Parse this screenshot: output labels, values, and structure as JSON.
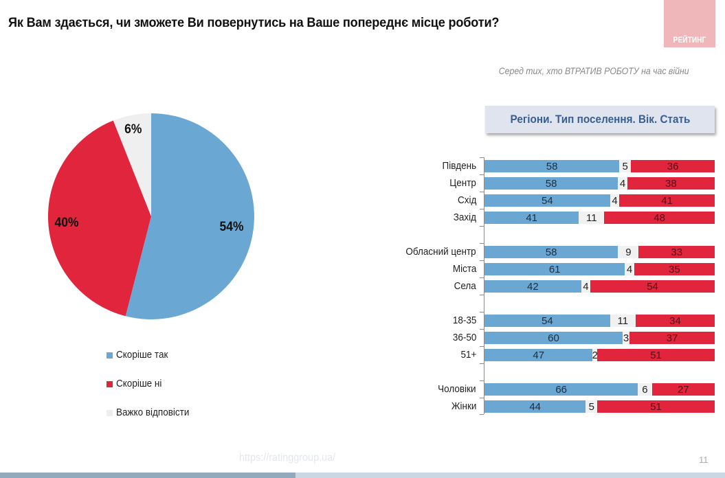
{
  "header": {
    "title": "Як Вам здається, чи зможете Ви повернутись на Ваше попереднє місце роботи?",
    "logo_text": "РЕЙТИНГ",
    "subtitle": "Серед тих, хто ВТРАТИВ РОБОТУ на час війни"
  },
  "section": {
    "title": "Регіони. Тип поселення. Вік. Стать"
  },
  "colors": {
    "yes": "#6aa8d3",
    "no": "#e0253d",
    "dont_know": "#f1f1f1",
    "logo": "#efb7b9",
    "section_title": "#3a5f8f"
  },
  "pie": {
    "labels": {
      "yes": "54%",
      "no": "40%",
      "dont_know": "6%"
    }
  },
  "legend": [
    {
      "label": "Скоріше так",
      "color": "#6aa8d3"
    },
    {
      "label": "Скоріше ні",
      "color": "#e0253d"
    },
    {
      "label": "Важко відповісти",
      "color": "#eeeeee"
    }
  ],
  "bars": {
    "rows": [
      {
        "label": "Південь",
        "yes": "58",
        "dk": "5",
        "no": "36"
      },
      {
        "label": "Центр",
        "yes": "58",
        "dk": "4",
        "no": "38"
      },
      {
        "label": "Схід",
        "yes": "54",
        "dk": "4",
        "no": "41"
      },
      {
        "label": "Захід",
        "yes": "41",
        "dk": "11",
        "no": "48"
      },
      {
        "label": "Обласний центр",
        "yes": "58",
        "dk": "9",
        "no": "33"
      },
      {
        "label": "Міста",
        "yes": "61",
        "dk": "4",
        "no": "35"
      },
      {
        "label": "Села",
        "yes": "42",
        "dk": "4",
        "no": "54"
      },
      {
        "label": "18-35",
        "yes": "54",
        "dk": "11",
        "no": "34"
      },
      {
        "label": "36-50",
        "yes": "60",
        "dk": "3",
        "no": "37"
      },
      {
        "label": "51+",
        "yes": "47",
        "dk": "2",
        "no": "51"
      },
      {
        "label": "Чоловіки",
        "yes": "66",
        "dk": "6",
        "no": "27"
      },
      {
        "label": "Жінки",
        "yes": "44",
        "dk": "5",
        "no": "51"
      }
    ]
  },
  "footer": {
    "url": "https://ratinggroup.ua/",
    "page": "11"
  },
  "chart_data": [
    {
      "type": "pie",
      "title": "Як Вам здається, чи зможете Ви повернутись на Ваше попереднє місце роботи?",
      "categories": [
        "Скоріше так",
        "Скоріше ні",
        "Важко відповісти"
      ],
      "values": [
        54,
        40,
        6
      ],
      "unit": "%",
      "legend_position": "bottom"
    },
    {
      "type": "bar",
      "orientation": "horizontal",
      "stacked": true,
      "title": "Регіони. Тип поселення. Вік. Стать",
      "subtitle": "Серед тих, хто ВТРАТИВ РОБОТУ на час війни",
      "categories": [
        "Південь",
        "Центр",
        "Схід",
        "Захід",
        "Обласний центр",
        "Міста",
        "Села",
        "18-35",
        "36-50",
        "51+",
        "Чоловіки",
        "Жінки"
      ],
      "groups": [
        {
          "name": "Регіони",
          "categories": [
            "Південь",
            "Центр",
            "Схід",
            "Захід"
          ]
        },
        {
          "name": "Тип поселення",
          "categories": [
            "Обласний центр",
            "Міста",
            "Села"
          ]
        },
        {
          "name": "Вік",
          "categories": [
            "18-35",
            "36-50",
            "51+"
          ]
        },
        {
          "name": "Стать",
          "categories": [
            "Чоловіки",
            "Жінки"
          ]
        }
      ],
      "series": [
        {
          "name": "Скоріше так",
          "values": [
            58,
            58,
            54,
            41,
            58,
            61,
            42,
            54,
            60,
            47,
            66,
            44
          ]
        },
        {
          "name": "Важко відповісти",
          "values": [
            5,
            4,
            4,
            11,
            9,
            4,
            4,
            11,
            3,
            2,
            6,
            5
          ]
        },
        {
          "name": "Скоріше ні",
          "values": [
            36,
            38,
            41,
            48,
            33,
            35,
            54,
            34,
            37,
            51,
            27,
            51
          ]
        }
      ],
      "xlim": [
        0,
        100
      ],
      "unit": "%",
      "grid": false
    }
  ]
}
